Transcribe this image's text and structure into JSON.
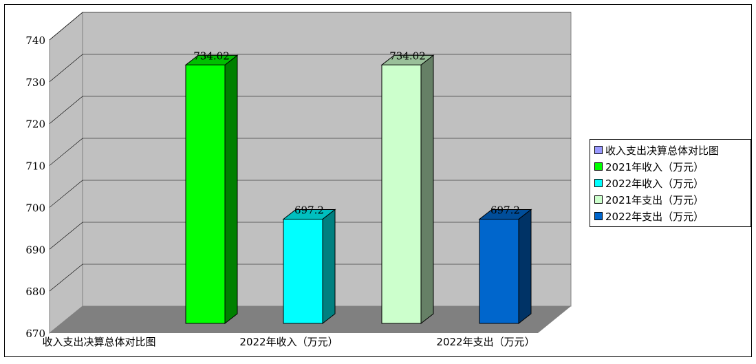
{
  "chart_data": {
    "type": "bar",
    "ylim": [
      670,
      740
    ],
    "yticks": [
      "740",
      "730",
      "720",
      "710",
      "700",
      "690",
      "680",
      "670"
    ],
    "x_tick_labels": [
      "收入支出决算总体对比图",
      "2022年收入（万元）",
      "2022年支出（万元）"
    ],
    "series": [
      {
        "name": "收入支出决算总体对比图",
        "color": "#9999ff",
        "value": null,
        "label": ""
      },
      {
        "name": "2021年收入（万元）",
        "color": "#00ff00",
        "value": 734.02,
        "label": "734.02"
      },
      {
        "name": "2022年收入（万元）",
        "color": "#00ffff",
        "value": 697.2,
        "label": "697.2"
      },
      {
        "name": "2021年支出（万元）",
        "color": "#ccffcc",
        "value": 734.02,
        "label": "734.02"
      },
      {
        "name": "2022年支出（万元）",
        "color": "#0066cc",
        "value": 697.2,
        "label": "697.2"
      }
    ],
    "legend_position": "right",
    "grid": true,
    "background": "#c0c0c0",
    "floor_color": "#808080"
  }
}
